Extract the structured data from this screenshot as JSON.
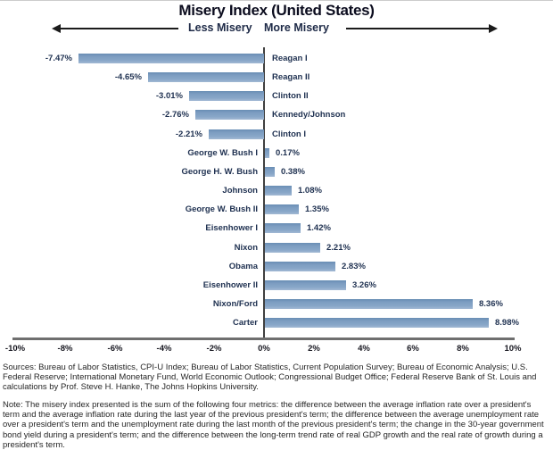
{
  "chart_data": {
    "type": "bar",
    "orientation": "horizontal",
    "title": "Misery Index (United States)",
    "xlabel": "",
    "ylabel": "",
    "xlim": [
      -10,
      10
    ],
    "grid": false,
    "legend": false,
    "bar_color": "#7E9EC3",
    "annotations": {
      "left": "Less Misery",
      "right": "More Misery"
    },
    "x_ticks": [
      {
        "label": "-10%",
        "value": -10
      },
      {
        "label": "-8%",
        "value": -8
      },
      {
        "label": "-6%",
        "value": -6
      },
      {
        "label": "-4%",
        "value": -4
      },
      {
        "label": "-2%",
        "value": -2
      },
      {
        "label": "0%",
        "value": 0
      },
      {
        "label": "2%",
        "value": 2
      },
      {
        "label": "4%",
        "value": 4
      },
      {
        "label": "6%",
        "value": 6
      },
      {
        "label": "8%",
        "value": 8
      },
      {
        "label": "10%",
        "value": 10
      }
    ],
    "rows": [
      {
        "category": "Reagan I",
        "value": -7.47,
        "value_label": "-7.47%"
      },
      {
        "category": "Reagan II",
        "value": -4.65,
        "value_label": "-4.65%"
      },
      {
        "category": "Clinton II",
        "value": -3.01,
        "value_label": "-3.01%"
      },
      {
        "category": "Kennedy/Johnson",
        "value": -2.76,
        "value_label": "-2.76%"
      },
      {
        "category": "Clinton I",
        "value": -2.21,
        "value_label": "-2.21%"
      },
      {
        "category": "George W. Bush I",
        "value": 0.17,
        "value_label": "0.17%"
      },
      {
        "category": "George H. W. Bush",
        "value": 0.38,
        "value_label": "0.38%"
      },
      {
        "category": "Johnson",
        "value": 1.08,
        "value_label": "1.08%"
      },
      {
        "category": "George W. Bush II",
        "value": 1.35,
        "value_label": "1.35%"
      },
      {
        "category": "Eisenhower I",
        "value": 1.42,
        "value_label": "1.42%"
      },
      {
        "category": "Nixon",
        "value": 2.21,
        "value_label": "2.21%"
      },
      {
        "category": "Obama",
        "value": 2.83,
        "value_label": "2.83%"
      },
      {
        "category": "Eisenhower II",
        "value": 3.26,
        "value_label": "3.26%"
      },
      {
        "category": "Nixon/Ford",
        "value": 8.36,
        "value_label": "8.36%"
      },
      {
        "category": "Carter",
        "value": 8.98,
        "value_label": "8.98%"
      }
    ]
  },
  "footer": {
    "sources": "Sources: Bureau of Labor Statistics, CPI-U Index; Bureau of Labor Statistics, Current Population Survey; Bureau of Economic Analysis; U.S. Federal Reserve; International Monetary Fund, World Economic Outlook; Congressional Budget Office; Federal Reserve Bank of St. Louis and calculations by Prof. Steve H. Hanke, The Johns Hopkins University.",
    "note": "Note: The misery index presented is the sum of the following four metrics: the difference between the average inflation rate over a president's term and the average inflation rate during the last year of the previous president's term; the difference between the average unemployment rate over a president's term and the unemployment rate during the last month of the previous president's term; the change in the 30-year government bond yield during a president's term; and the difference between the long-term trend rate of real GDP growth and the real rate of growth during a president's term."
  }
}
